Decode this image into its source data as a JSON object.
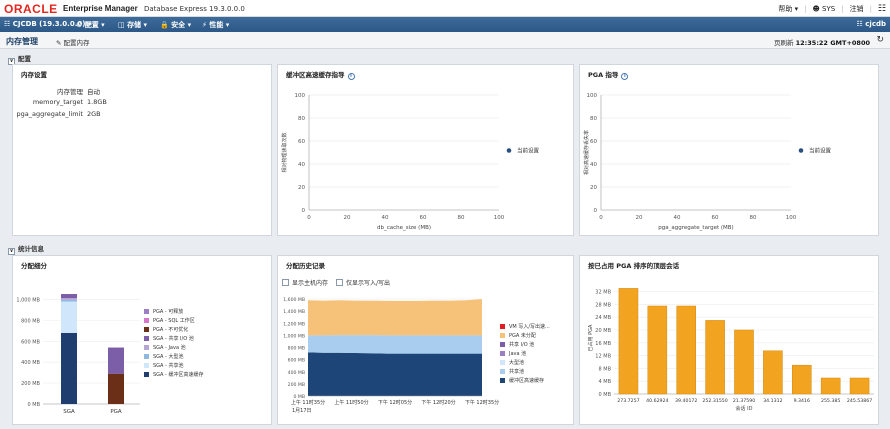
{
  "header": {
    "logo": "ORACLE",
    "product": "Enterprise Manager",
    "edition": "Database Express 19.3.0.0.0",
    "help": "帮助",
    "user": "SYS",
    "logout": "注销"
  },
  "navbar": {
    "db": "CJCDB (19.3.0.0.0)",
    "menus": [
      "配置",
      "存储",
      "安全",
      "性能"
    ],
    "right_label": "cjcdb"
  },
  "subheader": {
    "title": "内存管理",
    "config_button": "配置内存",
    "refresh_label": "页刷新",
    "refresh_time": "12:35:22 GMT+0800"
  },
  "sections": {
    "config": "配置",
    "stats": "统计信息"
  },
  "memory_settings": {
    "title": "内存设置",
    "rows": [
      {
        "key": "内存管理",
        "value": "自动"
      },
      {
        "key": "memory_target",
        "value": "1.8GB"
      },
      {
        "key": "pga_aggregate_limit",
        "value": "2GB"
      }
    ]
  },
  "colors": {
    "navy": "#1f3d6e",
    "blue": "#2f5f9b",
    "light_blue": "#9fc3e8",
    "orange": "#f2a93b",
    "red": "#e21b24",
    "purple": "#7b5ea7",
    "brown": "#6b2e16",
    "pink": "#d978c8",
    "lightpink": "#f3b6d6"
  },
  "chart_data": [
    {
      "type": "scatter",
      "title": "缓冲区高速缓存指导",
      "xlabel": "db_cache_size (MB)",
      "ylabel": "相对物理读取次数",
      "xlim": [
        0,
        100
      ],
      "ylim": [
        0,
        100
      ],
      "x_ticks": [
        "0",
        "20",
        "40",
        "60",
        "80",
        "100"
      ],
      "y_ticks": [
        "0",
        "20",
        "40",
        "60",
        "80",
        "100"
      ],
      "series": [
        {
          "name": "当前设置",
          "values": []
        }
      ]
    },
    {
      "type": "scatter",
      "title": "PGA 指导",
      "xlabel": "pga_aggregate_target (MB)",
      "ylabel": "相对高速缓存丢失率",
      "xlim": [
        0,
        100
      ],
      "ylim": [
        0,
        100
      ],
      "x_ticks": [
        "0",
        "20",
        "40",
        "60",
        "80",
        "100"
      ],
      "y_ticks": [
        "0",
        "20",
        "40",
        "60",
        "80",
        "100"
      ],
      "series": [
        {
          "name": "当前设置",
          "values": []
        }
      ]
    },
    {
      "type": "bar",
      "title": "分配细分",
      "categories": [
        "SGA",
        "PGA"
      ],
      "y_ticks": [
        "0 MB",
        "200 MB",
        "400 MB",
        "600 MB",
        "800 MB",
        "1,000 MB"
      ],
      "ylim": [
        0,
        1100
      ],
      "legend": [
        "PGA - 可释放",
        "PGA - SQL 工作区",
        "PGA - 不可优化",
        "SGA - 共享 I/O 池",
        "SGA - Java 池",
        "SGA - 大型池",
        "SGA - 共享池",
        "SGA - 缓冲区高速缓存"
      ],
      "series": [
        {
          "name": "SGA - 缓冲区高速缓存",
          "values": [
            680,
            0
          ]
        },
        {
          "name": "SGA - 共享池",
          "values": [
            300,
            0
          ]
        },
        {
          "name": "SGA - 大型池",
          "values": [
            16,
            0
          ]
        },
        {
          "name": "SGA - Java 池",
          "values": [
            16,
            0
          ]
        },
        {
          "name": "SGA - 共享 I/O 池",
          "values": [
            40,
            0
          ]
        },
        {
          "name": "PGA - 不可优化",
          "values": [
            0,
            290
          ]
        },
        {
          "name": "PGA - SQL 工作区",
          "values": [
            0,
            0
          ]
        },
        {
          "name": "PGA - 可释放",
          "values": [
            0,
            250
          ]
        }
      ]
    },
    {
      "type": "area",
      "title": "分配历史记录",
      "checkboxes": [
        "显示主机内存",
        "仅显示写入/写出"
      ],
      "y_ticks": [
        "0 MB",
        "200 MB",
        "400 MB",
        "600 MB",
        "800 MB",
        "1,000 MB",
        "1,200 MB",
        "1,400 MB",
        "1,600 MB"
      ],
      "ylim": [
        0,
        1700
      ],
      "x_ticks": [
        "上午 11时35分",
        "上午 11时50分",
        "下午 12时05分",
        "下午 12时20分",
        "下午 12时35分"
      ],
      "x_sub": "1月17日",
      "legend": [
        "VM 写入/写出速...",
        "PGA 未分配",
        "共享 I/O 池",
        "Java 池",
        "大型池",
        "共享池",
        "缓冲区高速缓存"
      ],
      "series": [
        {
          "name": "缓冲区高速缓存",
          "values": [
            720,
            715,
            715,
            710,
            705,
            700,
            700,
            700,
            700,
            700,
            700,
            700
          ]
        },
        {
          "name": "共享池",
          "values": [
            280,
            285,
            290,
            295,
            300,
            300,
            300,
            300,
            300,
            300,
            300,
            300
          ]
        },
        {
          "name": "PGA 未分配",
          "values": [
            580,
            575,
            575,
            570,
            570,
            570,
            570,
            570,
            575,
            575,
            580,
            600
          ]
        }
      ]
    },
    {
      "type": "bar",
      "title": "按已占用 PGA 排序的顶层会话",
      "ylabel": "已占用 PGA",
      "xlabel": "会话 ID",
      "y_ticks": [
        "0 MB",
        "4 MB",
        "8 MB",
        "12 MB",
        "16 MB",
        "20 MB",
        "24 MB",
        "28 MB",
        "32 MB"
      ],
      "ylim": [
        0,
        35
      ],
      "categories": [
        "273.7257",
        "40.62924",
        "39.40172",
        "252.31550",
        "21.37590",
        "34.1312",
        "9.3416",
        "255.385",
        "245.53867"
      ],
      "values": [
        33,
        27.5,
        27.5,
        23,
        20,
        13.5,
        9,
        5,
        5
      ]
    }
  ]
}
